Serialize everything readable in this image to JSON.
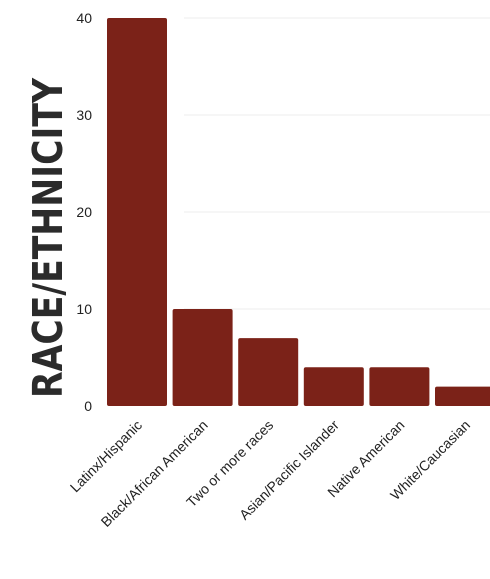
{
  "chart_data": {
    "type": "bar",
    "ylabel": "RACE/ETHNICITY",
    "xlabel": "",
    "title": "",
    "categories": [
      "Latinx/Hispanic",
      "Black/African American",
      "Two or more races",
      "Asian/Pacific Islander",
      "Native American",
      "White/Caucasian"
    ],
    "values": [
      40,
      10,
      7,
      4,
      4,
      2
    ],
    "ylim": [
      0,
      40
    ],
    "yticks": [
      0,
      10,
      20,
      30,
      40
    ],
    "grid": true,
    "bar_color": "#7b2218",
    "axis_title_color": "#2b2b2b"
  }
}
